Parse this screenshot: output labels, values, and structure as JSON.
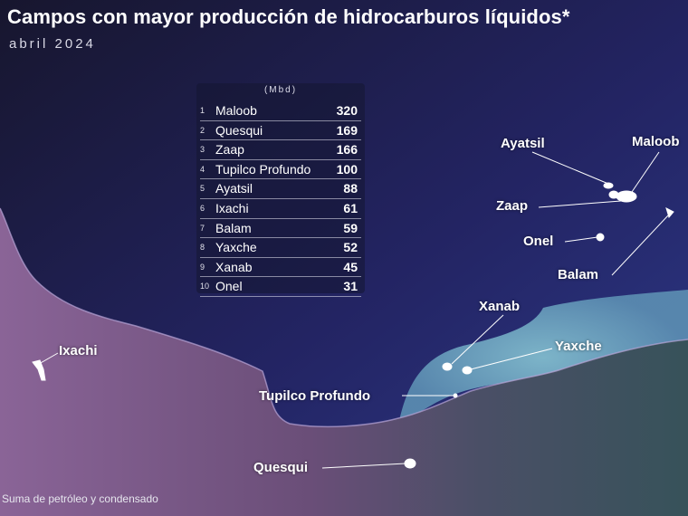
{
  "header": {
    "title": "Campos con mayor producción de hidrocarburos líquidos*",
    "date": "abril 2024"
  },
  "table": {
    "unit": "(Mbd)",
    "rows": [
      {
        "rank": "1",
        "name": "Maloob",
        "value": "320"
      },
      {
        "rank": "2",
        "name": "Quesqui",
        "value": "169"
      },
      {
        "rank": "3",
        "name": "Zaap",
        "value": "166"
      },
      {
        "rank": "4",
        "name": "Tupilco Profundo",
        "value": "100"
      },
      {
        "rank": "5",
        "name": "Ayatsil",
        "value": "88"
      },
      {
        "rank": "6",
        "name": "Ixachi",
        "value": "61"
      },
      {
        "rank": "7",
        "name": "Balam",
        "value": "59"
      },
      {
        "rank": "8",
        "name": "Yaxche",
        "value": "52"
      },
      {
        "rank": "9",
        "name": "Xanab",
        "value": "45"
      },
      {
        "rank": "10",
        "name": "Onel",
        "value": "31"
      }
    ]
  },
  "map_labels": {
    "ayatsil": "Ayatsil",
    "maloob": "Maloob",
    "zaap": "Zaap",
    "onel": "Onel",
    "balam": "Balam",
    "xanab": "Xanab",
    "yaxche": "Yaxche",
    "ixachi": "Ixachi",
    "tupilco": "Tupilco Profundo",
    "quesqui": "Quesqui"
  },
  "footnote": "Suma de petróleo y condensado",
  "colors": {
    "sea_dark": "#141a3a",
    "sea_mid": "#2a2a6e",
    "shallow_water": "#6fb3c9",
    "land_west": "#7a5a8c",
    "land_east": "#3d5560",
    "field_marker": "#ffffff"
  }
}
